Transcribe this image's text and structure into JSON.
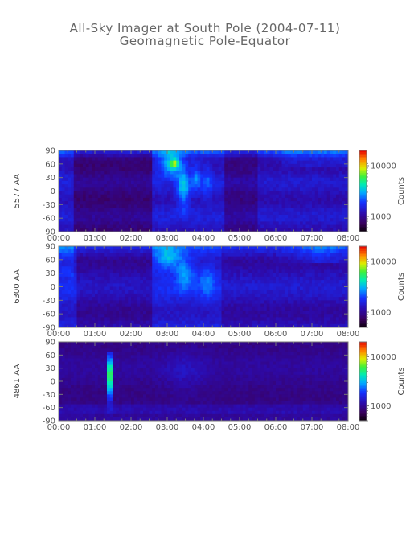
{
  "title": "All-Sky Imager at South Pole (2004-07-11)",
  "subtitle": "Geomagnetic Pole-Equator",
  "chart_data": [
    {
      "type": "heatmap",
      "ylabel": "5577 AA",
      "x_ticks": [
        "00:00",
        "01:00",
        "02:00",
        "03:00",
        "04:00",
        "05:00",
        "06:00",
        "07:00",
        "08:00"
      ],
      "y_ticks": [
        90,
        60,
        30,
        0,
        -30,
        -60,
        -90
      ],
      "ylim": [
        -90,
        90
      ],
      "xlim": [
        "00:00",
        "08:00"
      ],
      "colorbar_label": "Counts",
      "colorbar_ticks": [
        10000,
        1000
      ],
      "colorbar_tick_labels": [
        "10000",
        "1000"
      ],
      "colorbar_range": [
        500,
        20000
      ],
      "colorbar_scale": "log"
    },
    {
      "type": "heatmap",
      "ylabel": "6300 AA",
      "x_ticks": [
        "00:00",
        "01:00",
        "02:00",
        "03:00",
        "04:00",
        "05:00",
        "06:00",
        "07:00",
        "08:00"
      ],
      "y_ticks": [
        90,
        60,
        30,
        0,
        -30,
        -60,
        -90
      ],
      "ylim": [
        -90,
        90
      ],
      "xlim": [
        "00:00",
        "08:00"
      ],
      "colorbar_label": "Counts",
      "colorbar_ticks": [
        10000,
        1000
      ],
      "colorbar_tick_labels": [
        "10000",
        "1000"
      ],
      "colorbar_range": [
        500,
        20000
      ],
      "colorbar_scale": "log"
    },
    {
      "type": "heatmap",
      "ylabel": "4861 AA",
      "x_ticks": [
        "00:00",
        "01:00",
        "02:00",
        "03:00",
        "04:00",
        "05:00",
        "06:00",
        "07:00",
        "08:00"
      ],
      "y_ticks": [
        90,
        60,
        30,
        0,
        -30,
        -60,
        -90
      ],
      "ylim": [
        -90,
        90
      ],
      "xlim": [
        "00:00",
        "08:00"
      ],
      "colorbar_label": "Counts",
      "colorbar_ticks": [
        10000,
        1000
      ],
      "colorbar_tick_labels": [
        "10000",
        "1000"
      ],
      "colorbar_range": [
        500,
        20000
      ],
      "colorbar_scale": "log"
    }
  ]
}
